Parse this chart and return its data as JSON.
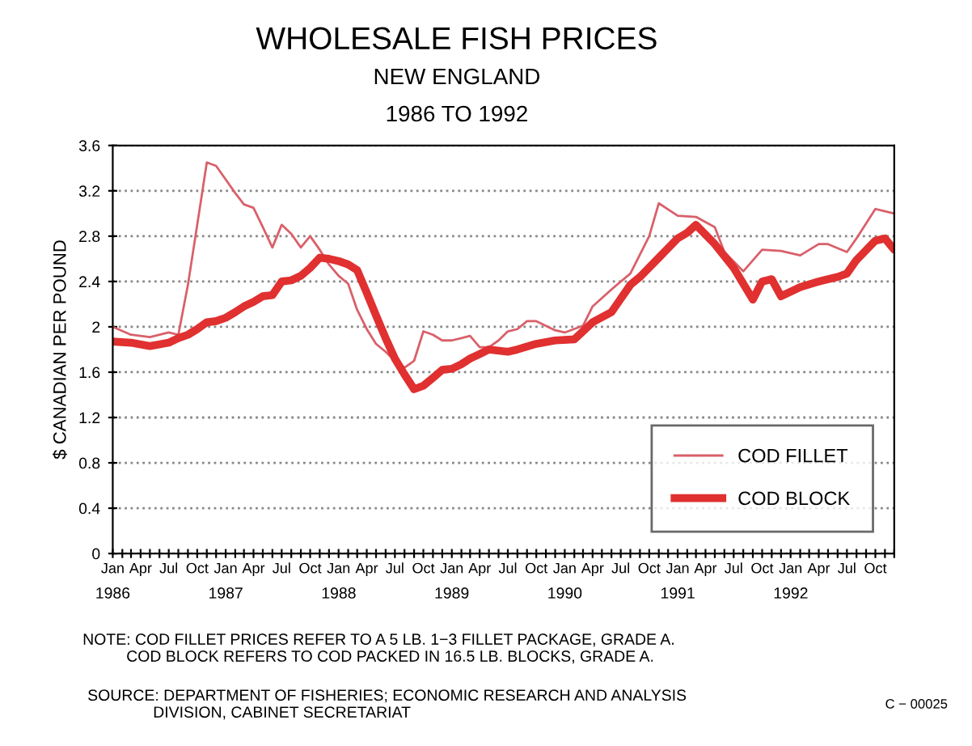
{
  "chart_data": {
    "type": "line",
    "title": "WHOLESALE FISH PRICES",
    "subtitle": "NEW ENGLAND\n1986 TO 1992",
    "ylabel": "$ CANADIAN PER POUND",
    "annotations": [
      "1986",
      "1987",
      "1988",
      "1989",
      "1990",
      "1991",
      "1992",
      "NOTE: COD FILLET PRICES REFER TO A 5 LB. 1−3 FILLET PACKAGE, GRADE A.\n          COD BLOCK REFERS TO COD PACKED IN 16.5 LB. BLOCKS, GRADE A.",
      "SOURCE: DEPARTMENT OF FISHERIES; ECONOMIC RESEARCH AND ANALYSIS\n               DIVISION, CABINET SECRETARIAT",
      "C − 00025"
    ],
    "series": [
      {
        "name": "COD FILLET",
        "color": "#d9606a",
        "x": [
          "1986-01",
          "1986-03",
          "1986-05",
          "1986-07",
          "1986-08",
          "1986-09",
          "1986-10",
          "1986-11",
          "1986-12",
          "1987-01",
          "1987-02",
          "1987-03",
          "1987-04",
          "1987-05",
          "1987-06",
          "1987-07",
          "1987-08",
          "1987-09",
          "1987-10",
          "1987-11",
          "1987-12",
          "1988-01",
          "1988-02",
          "1988-03",
          "1988-04",
          "1988-05",
          "1988-06",
          "1988-07",
          "1988-08",
          "1988-09",
          "1988-10",
          "1988-11",
          "1988-12",
          "1989-01",
          "1989-02",
          "1989-03",
          "1989-04",
          "1989-05",
          "1989-06",
          "1989-07",
          "1989-08",
          "1989-09",
          "1989-10",
          "1989-12",
          "1990-01",
          "1990-03",
          "1990-04",
          "1990-06",
          "1990-08",
          "1990-10",
          "1990-11",
          "1991-01",
          "1991-03",
          "1991-05",
          "1991-06",
          "1991-08",
          "1991-10",
          "1991-12",
          "1992-02",
          "1992-04",
          "1992-05",
          "1992-07",
          "1992-08",
          "1992-10",
          "1992-11",
          "1992-12"
        ],
        "values": [
          2.0,
          1.93,
          1.91,
          1.95,
          1.93,
          2.37,
          2.9,
          3.45,
          3.42,
          3.3,
          3.18,
          3.08,
          3.05,
          2.88,
          2.7,
          2.9,
          2.82,
          2.7,
          2.8,
          2.68,
          2.55,
          2.45,
          2.38,
          2.15,
          1.98,
          1.85,
          1.78,
          1.7,
          1.64,
          1.7,
          1.96,
          1.93,
          1.88,
          1.88,
          1.9,
          1.92,
          1.82,
          1.82,
          1.88,
          1.96,
          1.98,
          2.05,
          2.05,
          1.97,
          1.95,
          2.01,
          2.18,
          2.33,
          2.47,
          2.8,
          3.09,
          2.98,
          2.97,
          2.88,
          2.66,
          2.49,
          2.68,
          2.67,
          2.63,
          2.73,
          2.73,
          2.66,
          2.78,
          3.04,
          3.02,
          3.0
        ]
      },
      {
        "name": "COD BLOCK",
        "color": "#e03030",
        "x": [
          "1986-01",
          "1986-03",
          "1986-05",
          "1986-07",
          "1986-08",
          "1986-09",
          "1986-10",
          "1986-11",
          "1986-12",
          "1987-01",
          "1987-02",
          "1987-03",
          "1987-04",
          "1987-05",
          "1987-06",
          "1987-07",
          "1987-08",
          "1987-09",
          "1987-10",
          "1987-11",
          "1987-12",
          "1988-01",
          "1988-02",
          "1988-03",
          "1988-04",
          "1988-05",
          "1988-06",
          "1988-07",
          "1988-08",
          "1988-09",
          "1988-10",
          "1988-11",
          "1988-12",
          "1989-01",
          "1989-02",
          "1989-03",
          "1989-04",
          "1989-05",
          "1989-07",
          "1989-08",
          "1989-10",
          "1989-12",
          "1990-02",
          "1990-04",
          "1990-06",
          "1990-08",
          "1990-09",
          "1990-11",
          "1991-01",
          "1991-02",
          "1991-03",
          "1991-05",
          "1991-07",
          "1991-09",
          "1991-10",
          "1991-11",
          "1991-12",
          "1992-02",
          "1992-04",
          "1992-06",
          "1992-07",
          "1992-08",
          "1992-10",
          "1992-11",
          "1992-12"
        ],
        "values": [
          1.87,
          1.86,
          1.83,
          1.86,
          1.9,
          1.93,
          1.98,
          2.04,
          2.05,
          2.08,
          2.13,
          2.18,
          2.22,
          2.27,
          2.28,
          2.4,
          2.41,
          2.45,
          2.52,
          2.61,
          2.6,
          2.58,
          2.55,
          2.5,
          2.3,
          2.1,
          1.9,
          1.72,
          1.58,
          1.45,
          1.48,
          1.55,
          1.62,
          1.63,
          1.67,
          1.72,
          1.76,
          1.8,
          1.78,
          1.8,
          1.85,
          1.88,
          1.89,
          2.04,
          2.13,
          2.37,
          2.44,
          2.61,
          2.78,
          2.83,
          2.9,
          2.73,
          2.52,
          2.24,
          2.4,
          2.42,
          2.27,
          2.35,
          2.4,
          2.44,
          2.47,
          2.59,
          2.76,
          2.78,
          2.68
        ]
      }
    ],
    "xlim": [
      "1986-01",
      "1992-12"
    ],
    "xticks": [
      {
        "value": "1986-01",
        "label": "Jan"
      },
      {
        "value": "1986-02",
        "label": null
      },
      {
        "value": "1986-03",
        "label": null
      },
      {
        "value": "1986-04",
        "label": "Apr"
      },
      {
        "value": "1986-05",
        "label": null
      },
      {
        "value": "1986-06",
        "label": null
      },
      {
        "value": "1986-07",
        "label": "Jul"
      },
      {
        "value": "1986-08",
        "label": null
      },
      {
        "value": "1986-09",
        "label": null
      },
      {
        "value": "1986-10",
        "label": "Oct"
      },
      {
        "value": "1986-11",
        "label": null
      },
      {
        "value": "1986-12",
        "label": null
      },
      {
        "value": "1987-01",
        "label": "Jan"
      },
      {
        "value": "1987-02",
        "label": null
      },
      {
        "value": "1987-03",
        "label": null
      },
      {
        "value": "1987-04",
        "label": "Apr"
      },
      {
        "value": "1987-05",
        "label": null
      },
      {
        "value": "1987-06",
        "label": null
      },
      {
        "value": "1987-07",
        "label": "Jul"
      },
      {
        "value": "1987-08",
        "label": null
      },
      {
        "value": "1987-09",
        "label": null
      },
      {
        "value": "1987-10",
        "label": "Oct"
      },
      {
        "value": "1987-11",
        "label": null
      },
      {
        "value": "1987-12",
        "label": null
      },
      {
        "value": "1988-01",
        "label": "Jan"
      },
      {
        "value": "1988-02",
        "label": null
      },
      {
        "value": "1988-03",
        "label": null
      },
      {
        "value": "1988-04",
        "label": "Apr"
      },
      {
        "value": "1988-05",
        "label": null
      },
      {
        "value": "1988-06",
        "label": null
      },
      {
        "value": "1988-07",
        "label": "Jul"
      },
      {
        "value": "1988-08",
        "label": null
      },
      {
        "value": "1988-09",
        "label": null
      },
      {
        "value": "1988-10",
        "label": "Oct"
      },
      {
        "value": "1988-11",
        "label": null
      },
      {
        "value": "1988-12",
        "label": null
      },
      {
        "value": "1989-01",
        "label": "Jan"
      },
      {
        "value": "1989-02",
        "label": null
      },
      {
        "value": "1989-03",
        "label": null
      },
      {
        "value": "1989-04",
        "label": "Apr"
      },
      {
        "value": "1989-05",
        "label": null
      },
      {
        "value": "1989-06",
        "label": null
      },
      {
        "value": "1989-07",
        "label": "Jul"
      },
      {
        "value": "1989-08",
        "label": null
      },
      {
        "value": "1989-09",
        "label": null
      },
      {
        "value": "1989-10",
        "label": "Oct"
      },
      {
        "value": "1989-11",
        "label": null
      },
      {
        "value": "1989-12",
        "label": null
      },
      {
        "value": "1990-01",
        "label": "Jan"
      },
      {
        "value": "1990-02",
        "label": null
      },
      {
        "value": "1990-03",
        "label": null
      },
      {
        "value": "1990-04",
        "label": "Apr"
      },
      {
        "value": "1990-05",
        "label": null
      },
      {
        "value": "1990-06",
        "label": null
      },
      {
        "value": "1990-07",
        "label": "Jul"
      },
      {
        "value": "1990-08",
        "label": null
      },
      {
        "value": "1990-09",
        "label": null
      },
      {
        "value": "1990-10",
        "label": "Oct"
      },
      {
        "value": "1990-11",
        "label": null
      },
      {
        "value": "1990-12",
        "label": null
      },
      {
        "value": "1991-01",
        "label": "Jan"
      },
      {
        "value": "1991-02",
        "label": null
      },
      {
        "value": "1991-03",
        "label": null
      },
      {
        "value": "1991-04",
        "label": "Apr"
      },
      {
        "value": "1991-05",
        "label": null
      },
      {
        "value": "1991-06",
        "label": null
      },
      {
        "value": "1991-07",
        "label": "Jul"
      },
      {
        "value": "1991-08",
        "label": null
      },
      {
        "value": "1991-09",
        "label": null
      },
      {
        "value": "1991-10",
        "label": "Oct"
      },
      {
        "value": "1991-11",
        "label": null
      },
      {
        "value": "1991-12",
        "label": null
      },
      {
        "value": "1992-01",
        "label": "Jan"
      },
      {
        "value": "1992-02",
        "label": null
      },
      {
        "value": "1992-03",
        "label": null
      },
      {
        "value": "1992-04",
        "label": "Apr"
      },
      {
        "value": "1992-05",
        "label": null
      },
      {
        "value": "1992-06",
        "label": null
      },
      {
        "value": "1992-07",
        "label": "Jul"
      },
      {
        "value": "1992-08",
        "label": null
      },
      {
        "value": "1992-09",
        "label": null
      },
      {
        "value": "1992-10",
        "label": "Oct"
      },
      {
        "value": "1992-11",
        "label": null
      },
      {
        "value": "1992-12",
        "label": null
      }
    ],
    "ylim": [
      0,
      3.6
    ],
    "yticks": [
      0,
      0.4,
      0.8,
      1.2,
      1.6,
      2,
      2.4,
      2.8,
      3.2,
      3.6
    ],
    "grid": "y",
    "legend": "bottom right",
    "marker": "none",
    "line_style": "solid"
  }
}
